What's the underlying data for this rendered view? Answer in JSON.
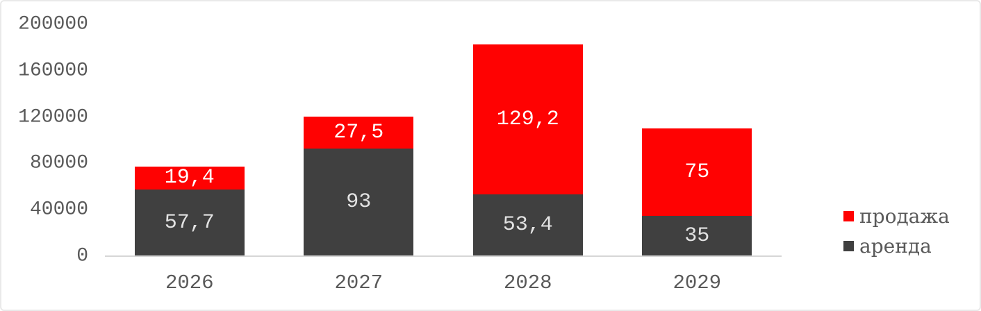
{
  "chart_data": {
    "type": "bar",
    "stacked": true,
    "title": "",
    "xlabel": "",
    "ylabel": "",
    "categories": [
      "2026",
      "2027",
      "2028",
      "2029"
    ],
    "series": [
      {
        "name": "аренда",
        "color": "#404040",
        "label_color": "#e3e3e3",
        "values": [
          57700,
          93000,
          53400,
          35000
        ],
        "labels": [
          "57,7",
          "93",
          "53,4",
          "35"
        ]
      },
      {
        "name": "продажа",
        "color": "#ff0202",
        "label_color": "#ffffff",
        "values": [
          19400,
          27500,
          129200,
          75000
        ],
        "labels": [
          "19,4",
          "27,5",
          "129,2",
          "75"
        ]
      }
    ],
    "y_axis": {
      "min": 0,
      "max": 200000,
      "step": 40000,
      "tick_labels": [
        "0",
        "40000",
        "80000",
        "120000",
        "160000",
        "200000"
      ]
    },
    "legend": [
      {
        "label": "продажа",
        "color": "#ff0202"
      },
      {
        "label": "аренда",
        "color": "#404040"
      }
    ],
    "legend_position": "right",
    "grid": false,
    "axis_text_color": "#595959",
    "axis_line_color": "#d6d6d6"
  }
}
